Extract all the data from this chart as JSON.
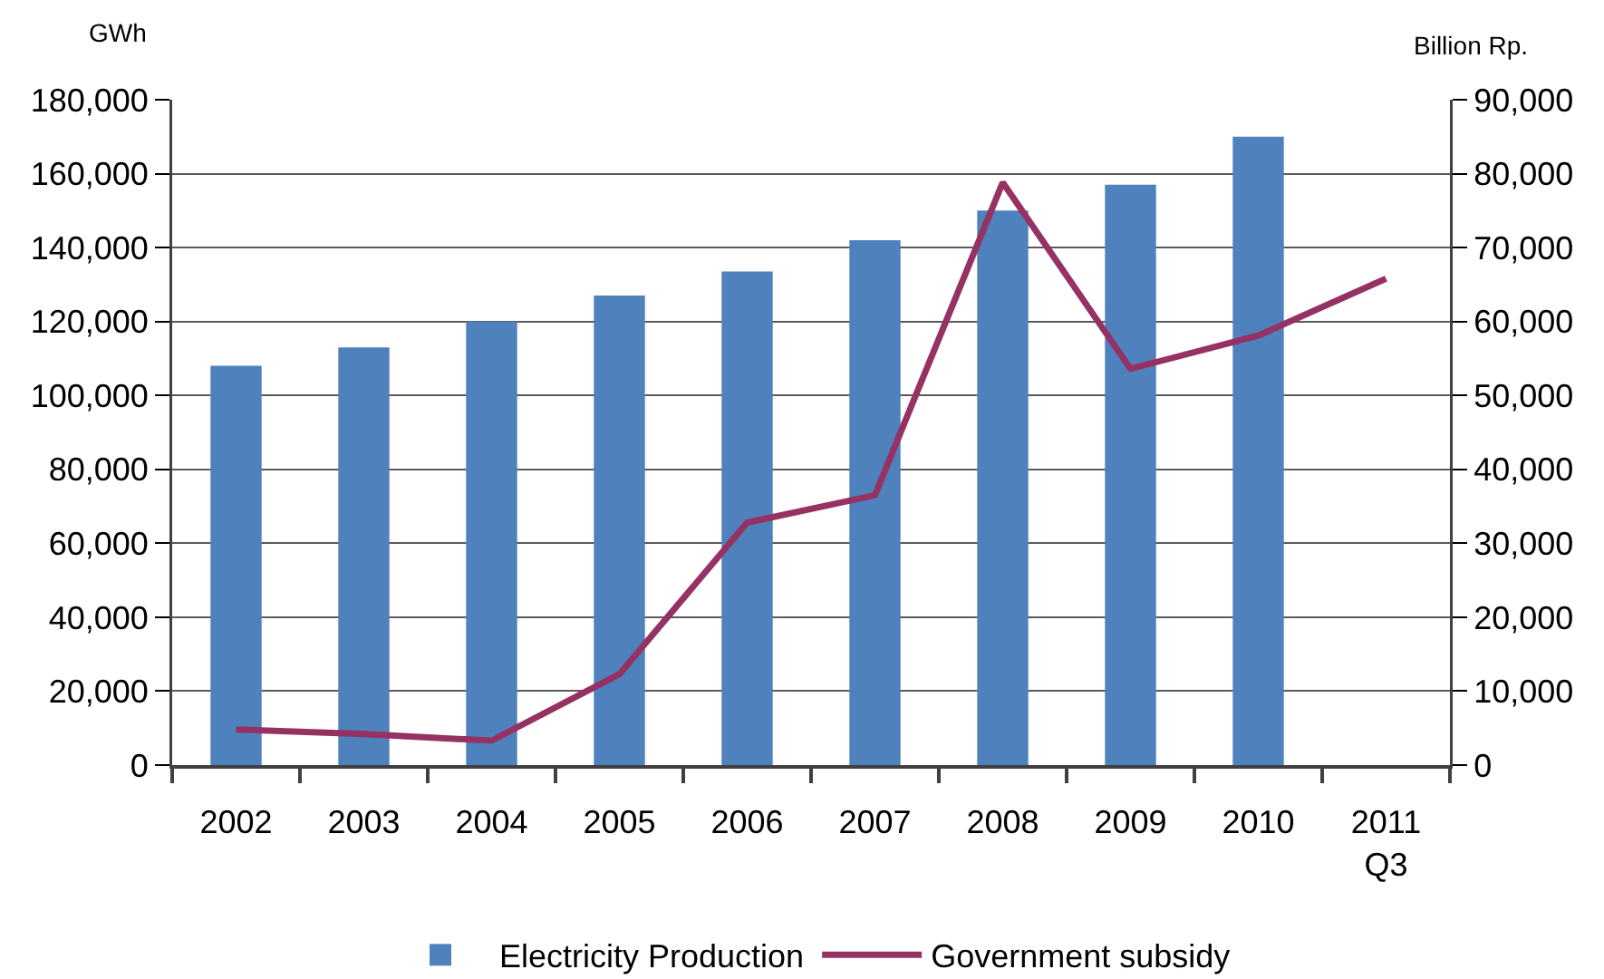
{
  "chart_data": {
    "type": "bar",
    "categories": [
      "2002",
      "2003",
      "2004",
      "2005",
      "2006",
      "2007",
      "2008",
      "2009",
      "2010",
      "2011\nQ3"
    ],
    "series": [
      {
        "name": "Electricity Production",
        "color": "#4f81bd",
        "values": [
          108000,
          113000,
          120000,
          127000,
          133500,
          142000,
          150000,
          157000,
          170000,
          null
        ]
      },
      {
        "name": "Government subsidy",
        "type": "line",
        "axis": "y2",
        "color": "#953163",
        "values": [
          4800,
          4200,
          3300,
          12300,
          32800,
          36500,
          78800,
          53600,
          58100,
          65800
        ]
      }
    ],
    "ylabel": "GWh",
    "y2label": "Billion Rp.",
    "ylim": [
      0,
      180000
    ],
    "yticks": [
      0,
      {
        "value": 20000,
        "label": "20,000"
      },
      {
        "value": 40000,
        "label": "40,000"
      },
      {
        "value": 60000,
        "label": "60,000"
      },
      {
        "value": 80000,
        "label": "80,000"
      },
      {
        "value": 100000,
        "label": "100,000"
      },
      {
        "value": 120000,
        "label": "120,000"
      },
      {
        "value": 140000,
        "label": "140,000"
      },
      {
        "value": 160000,
        "label": "160,000"
      },
      {
        "value": 180000,
        "label": "180,000"
      }
    ],
    "y2lim": [
      0,
      90000
    ],
    "y2ticks": [
      0,
      {
        "value": 10000,
        "label": "10,000"
      },
      {
        "value": 20000,
        "label": "20,000"
      },
      {
        "value": 30000,
        "label": "30,000"
      },
      {
        "value": 40000,
        "label": "40,000"
      },
      {
        "value": 50000,
        "label": "50,000"
      },
      {
        "value": 60000,
        "label": "60,000"
      },
      {
        "value": 70000,
        "label": "70,000"
      },
      {
        "value": 80000,
        "label": "80,000"
      },
      {
        "value": 90000,
        "label": "90,000"
      }
    ],
    "grid": "y",
    "legend": "bottom",
    "marker": "none",
    "line_style": "solid"
  }
}
